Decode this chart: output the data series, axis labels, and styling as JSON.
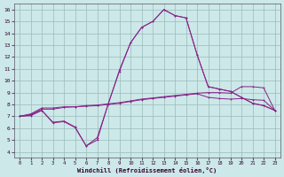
{
  "xlabel": "Windchill (Refroidissement éolien,°C)",
  "bg_color": "#cce8e8",
  "line_color": "#882288",
  "grid_color": "#99bbbb",
  "xlim_min": -0.5,
  "xlim_max": 23.5,
  "ylim_min": 3.5,
  "ylim_max": 16.5,
  "xticks": [
    0,
    1,
    2,
    3,
    4,
    5,
    6,
    7,
    8,
    9,
    10,
    11,
    12,
    13,
    14,
    15,
    16,
    17,
    18,
    19,
    20,
    21,
    22,
    23
  ],
  "yticks": [
    4,
    5,
    6,
    7,
    8,
    9,
    10,
    11,
    12,
    13,
    14,
    15,
    16
  ],
  "series": [
    [
      7.0,
      7.2,
      7.7,
      7.7,
      7.8,
      7.8,
      7.9,
      7.95,
      8.05,
      8.15,
      8.3,
      8.45,
      8.55,
      8.65,
      8.75,
      8.85,
      8.95,
      9.0,
      9.0,
      8.95,
      9.5,
      9.5,
      9.4,
      7.5
    ],
    [
      7.0,
      7.15,
      7.6,
      7.6,
      7.75,
      7.8,
      7.85,
      7.9,
      8.0,
      8.1,
      8.25,
      8.4,
      8.5,
      8.6,
      8.7,
      8.8,
      8.9,
      8.6,
      8.5,
      8.45,
      8.5,
      8.4,
      8.35,
      7.5
    ],
    [
      7.0,
      7.1,
      7.5,
      6.5,
      6.6,
      6.1,
      4.5,
      5.0,
      8.1,
      10.8,
      13.2,
      14.5,
      15.0,
      16.0,
      15.5,
      15.3,
      12.2,
      9.5,
      9.3,
      9.1,
      8.6,
      8.1,
      7.9,
      7.5
    ],
    [
      7.0,
      7.05,
      7.5,
      6.45,
      6.55,
      6.05,
      4.5,
      5.2,
      8.05,
      10.9,
      13.2,
      14.5,
      15.0,
      16.0,
      15.5,
      15.3,
      12.2,
      9.5,
      9.3,
      9.1,
      8.6,
      8.1,
      7.9,
      7.5
    ]
  ]
}
